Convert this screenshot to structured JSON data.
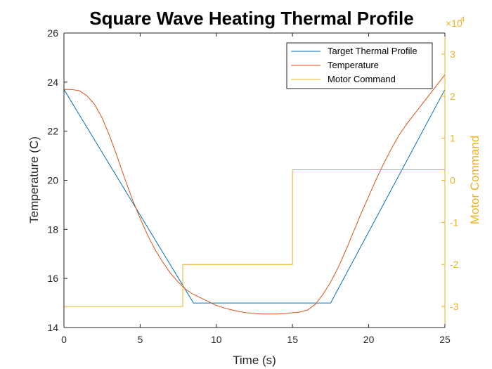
{
  "chart_data": {
    "type": "line",
    "title": "Square Wave Heating Thermal Profile",
    "xlabel": "Time (s)",
    "ylabel_left": "Temperature (C)",
    "ylabel_right": "Motor Command",
    "right_exponent_base": "×10",
    "right_exponent_power": "4",
    "xlim": [
      0,
      25
    ],
    "ylim_left": [
      14,
      26
    ],
    "ylim_right": [
      -3.5,
      3.5
    ],
    "x_ticks": [
      "0",
      "5",
      "10",
      "15",
      "20",
      "25"
    ],
    "y_left_ticks": [
      "14",
      "16",
      "18",
      "20",
      "22",
      "24",
      "26"
    ],
    "y_right_ticks": [
      "-3",
      "-2",
      "-1",
      "0",
      "1",
      "2",
      "3"
    ],
    "legend_position": "top-right",
    "colors": {
      "target": "#0072BD",
      "temperature": "#D95319",
      "motor": "#EDB120",
      "right_axis": "#EDB120"
    },
    "series": [
      {
        "name": "Target Thermal Profile",
        "axis": "left",
        "x": [
          0,
          8.5,
          17.5,
          25
        ],
        "values": [
          23.7,
          15.0,
          15.0,
          23.7
        ]
      },
      {
        "name": "Temperature",
        "axis": "left",
        "x": [
          0,
          0.5,
          1.0,
          1.5,
          2.0,
          2.5,
          3.0,
          3.5,
          4.0,
          4.5,
          5.0,
          5.5,
          6.0,
          6.5,
          7.0,
          7.5,
          8.0,
          8.5,
          9.0,
          9.5,
          10.0,
          10.5,
          11.0,
          11.5,
          12.0,
          12.5,
          13.0,
          13.5,
          14.0,
          14.5,
          15.0,
          15.5,
          16.0,
          16.5,
          17.0,
          17.5,
          18.0,
          18.5,
          19.0,
          19.5,
          20.0,
          20.5,
          21.0,
          21.5,
          22.0,
          22.5,
          23.0,
          23.5,
          24.0,
          24.5,
          25.0
        ],
        "values": [
          23.7,
          23.7,
          23.65,
          23.45,
          23.1,
          22.55,
          21.8,
          20.95,
          20.05,
          19.2,
          18.45,
          17.75,
          17.15,
          16.65,
          16.2,
          15.85,
          15.55,
          15.35,
          15.2,
          15.05,
          14.9,
          14.8,
          14.72,
          14.65,
          14.6,
          14.57,
          14.55,
          14.55,
          14.55,
          14.57,
          14.6,
          14.63,
          14.72,
          14.95,
          15.35,
          15.85,
          16.45,
          17.15,
          17.9,
          18.65,
          19.35,
          20.05,
          20.7,
          21.3,
          21.85,
          22.3,
          22.7,
          23.1,
          23.5,
          23.9,
          24.3
        ]
      },
      {
        "name": "Motor Command",
        "axis": "right",
        "x": [
          0,
          7.8,
          7.8,
          15.0,
          15.0,
          25
        ],
        "values": [
          -3.0,
          -3.0,
          -2.0,
          -2.0,
          0.25,
          0.25
        ]
      }
    ]
  }
}
